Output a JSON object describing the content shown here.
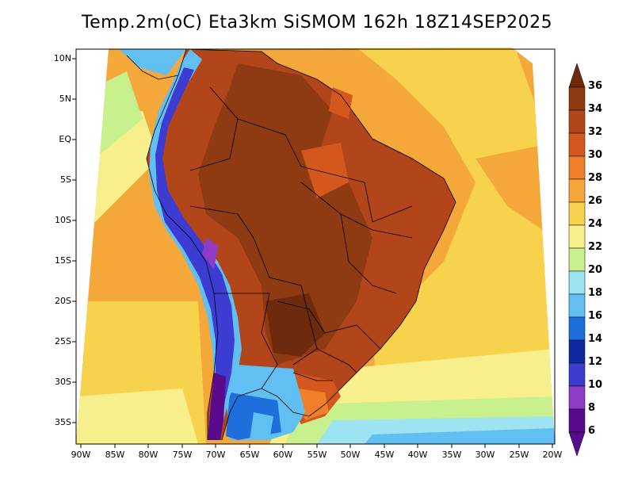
{
  "title": "Temp.2m(oC) Eta3km SiSMOM 162h 18Z14SEP2025",
  "lat_labels": [
    "10N",
    "5N",
    "EQ",
    "5S",
    "10S",
    "15S",
    "20S",
    "25S",
    "30S",
    "35S"
  ],
  "lon_labels": [
    "90W",
    "85W",
    "80W",
    "75W",
    "70W",
    "65W",
    "60W",
    "55W",
    "50W",
    "45W",
    "40W",
    "35W",
    "30W",
    "25W",
    "20W"
  ],
  "colorbar": {
    "labels": [
      "36",
      "34",
      "32",
      "30",
      "28",
      "26",
      "24",
      "22",
      "20",
      "18",
      "16",
      "14",
      "12",
      "10",
      "8",
      "6"
    ],
    "colors": [
      "#6e2a0c",
      "#8e3a12",
      "#b2461a",
      "#d4581e",
      "#ef7f2a",
      "#f5a83a",
      "#f7d24c",
      "#f6ef8c",
      "#c8f08c",
      "#9ee3f2",
      "#62bff2",
      "#1e6fdc",
      "#0d2aa0",
      "#3c3cd2",
      "#8e3cc8",
      "#5a0a8c"
    ]
  },
  "regions": {
    "ocean_warm": "#f5a83a",
    "ocean_hot": "#ef7f2a",
    "ocean_mild": "#f7d24c",
    "land_hot": "#b2461a",
    "land_very_hot": "#8e3a12",
    "andes_cold": "#3c3cd2",
    "andes_mid": "#62bff2",
    "south_cool": "#1e6fdc",
    "pacific_cool": "#c8f08c",
    "south_ocean": "#9ee3f2",
    "patagonia": "#5a0a8c",
    "border": "#000000"
  }
}
